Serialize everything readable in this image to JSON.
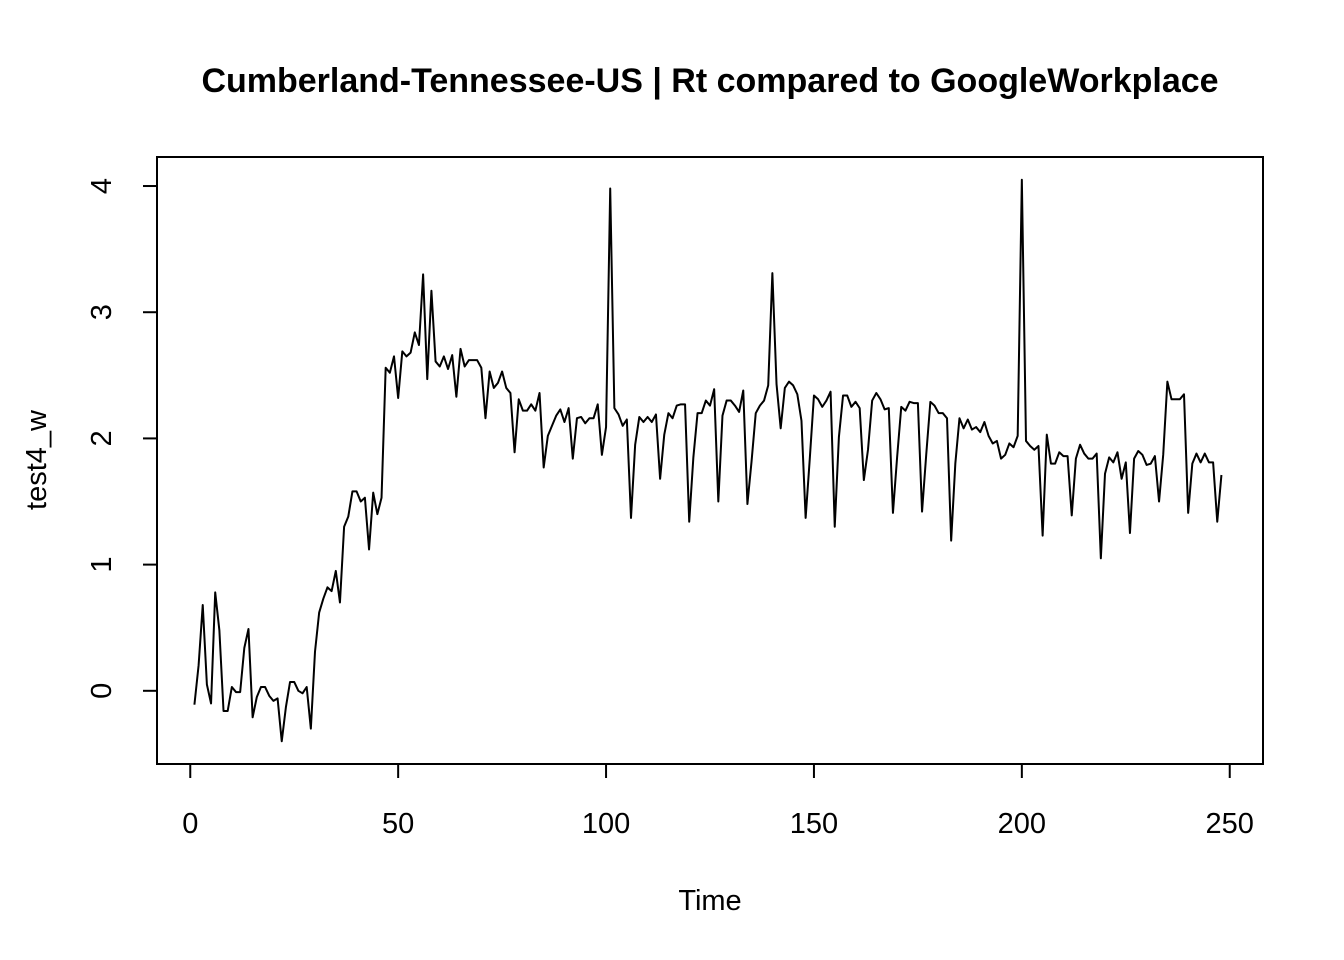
{
  "chart_data": {
    "type": "line",
    "title": "Cumberland-Tennessee-US | Rt compared to GoogleWorkplace",
    "xlabel": "Time",
    "ylabel": "test4_w",
    "xlim": [
      -8,
      258
    ],
    "ylim": [
      -0.58,
      4.23
    ],
    "x_ticks": [
      0,
      50,
      100,
      150,
      200,
      250
    ],
    "y_ticks": [
      0,
      1,
      2,
      3,
      4
    ],
    "grid": false,
    "legend": "none",
    "series": [
      {
        "color": "#000000",
        "x_start": 1,
        "values": [
          -0.11,
          0.2,
          0.68,
          0.05,
          -0.1,
          0.78,
          0.48,
          -0.16,
          -0.16,
          0.03,
          -0.01,
          -0.01,
          0.34,
          0.49,
          -0.21,
          -0.05,
          0.03,
          0.03,
          -0.04,
          -0.08,
          -0.06,
          -0.4,
          -0.13,
          0.07,
          0.07,
          0.0,
          -0.02,
          0.03,
          -0.3,
          0.31,
          0.62,
          0.73,
          0.82,
          0.79,
          0.95,
          0.7,
          1.3,
          1.38,
          1.58,
          1.58,
          1.5,
          1.53,
          1.12,
          1.57,
          1.4,
          1.53,
          2.56,
          2.52,
          2.65,
          2.32,
          2.69,
          2.65,
          2.68,
          2.84,
          2.74,
          3.3,
          2.47,
          3.17,
          2.61,
          2.57,
          2.65,
          2.55,
          2.66,
          2.33,
          2.71,
          2.57,
          2.62,
          2.62,
          2.62,
          2.56,
          2.16,
          2.53,
          2.4,
          2.44,
          2.53,
          2.4,
          2.36,
          1.89,
          2.31,
          2.22,
          2.22,
          2.27,
          2.22,
          2.36,
          1.77,
          2.02,
          2.1,
          2.18,
          2.23,
          2.13,
          2.24,
          1.84,
          2.16,
          2.17,
          2.12,
          2.16,
          2.16,
          2.27,
          1.87,
          2.09,
          3.98,
          2.24,
          2.19,
          2.1,
          2.15,
          1.37,
          1.95,
          2.17,
          2.13,
          2.17,
          2.13,
          2.19,
          1.68,
          2.03,
          2.2,
          2.16,
          2.26,
          2.27,
          2.27,
          1.34,
          1.85,
          2.2,
          2.2,
          2.3,
          2.26,
          2.39,
          1.5,
          2.18,
          2.3,
          2.3,
          2.26,
          2.21,
          2.38,
          1.48,
          1.82,
          2.2,
          2.26,
          2.3,
          2.42,
          3.31,
          2.43,
          2.08,
          2.4,
          2.45,
          2.42,
          2.35,
          2.14,
          1.37,
          1.84,
          2.34,
          2.31,
          2.25,
          2.3,
          2.37,
          1.3,
          2.01,
          2.34,
          2.34,
          2.25,
          2.29,
          2.24,
          1.67,
          1.91,
          2.3,
          2.36,
          2.31,
          2.23,
          2.24,
          1.41,
          1.85,
          2.25,
          2.22,
          2.29,
          2.28,
          2.28,
          1.42,
          1.87,
          2.29,
          2.26,
          2.2,
          2.2,
          2.16,
          1.19,
          1.8,
          2.16,
          2.08,
          2.15,
          2.07,
          2.09,
          2.05,
          2.13,
          2.02,
          1.96,
          1.98,
          1.84,
          1.87,
          1.96,
          1.93,
          2.02,
          4.05,
          1.98,
          1.94,
          1.91,
          1.94,
          1.23,
          2.03,
          1.8,
          1.8,
          1.89,
          1.86,
          1.86,
          1.39,
          1.84,
          1.95,
          1.88,
          1.84,
          1.84,
          1.88,
          1.05,
          1.72,
          1.85,
          1.81,
          1.89,
          1.68,
          1.81,
          1.25,
          1.84,
          1.9,
          1.87,
          1.79,
          1.8,
          1.86,
          1.5,
          1.87,
          2.45,
          2.31,
          2.31,
          2.31,
          2.35,
          1.41,
          1.8,
          1.88,
          1.81,
          1.88,
          1.81,
          1.81,
          1.34,
          1.71
        ]
      }
    ]
  }
}
